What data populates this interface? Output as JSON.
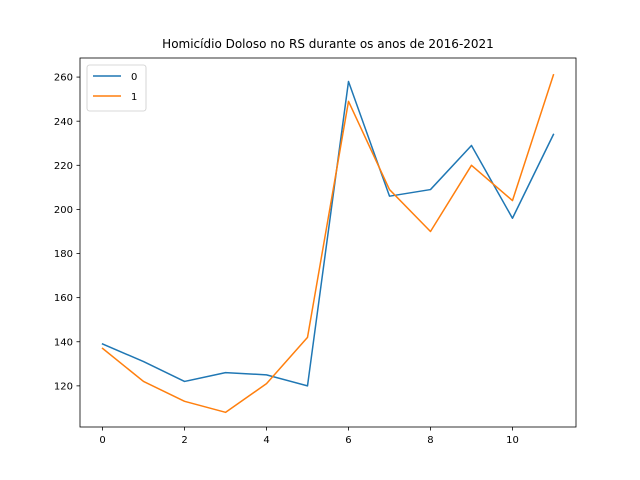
{
  "chart_data": {
    "type": "line",
    "title": "Homicídio Doloso no RS durante os anos de 2016-2021",
    "xlabel": "",
    "ylabel": "",
    "x": [
      0,
      1,
      2,
      3,
      4,
      5,
      6,
      7,
      8,
      9,
      10,
      11
    ],
    "xlim": [
      -0.55,
      11.55
    ],
    "ylim": [
      101.35,
      268.65
    ],
    "xticks": [
      0,
      2,
      4,
      6,
      8,
      10
    ],
    "yticks": [
      120,
      140,
      160,
      180,
      200,
      220,
      240,
      260
    ],
    "grid": false,
    "legend_position": "top-left",
    "series": [
      {
        "name": "0",
        "color": "#1f77b4",
        "values": [
          139,
          131,
          122,
          126,
          125,
          120,
          258,
          206,
          209,
          229,
          196,
          234
        ]
      },
      {
        "name": "1",
        "color": "#ff7f0e",
        "values": [
          137,
          122,
          113,
          108,
          121,
          142,
          249,
          209,
          190,
          220,
          204,
          261
        ]
      }
    ]
  }
}
